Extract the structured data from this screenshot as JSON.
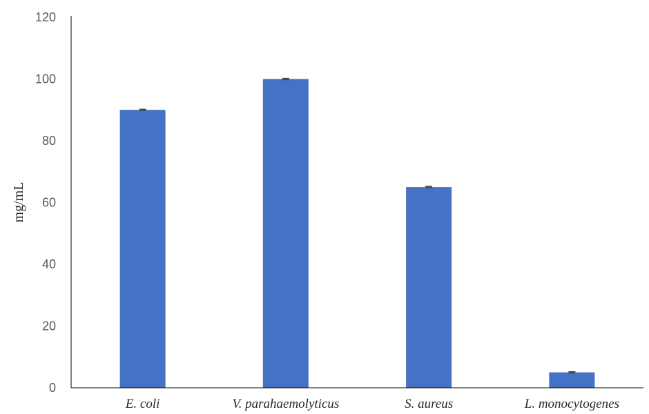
{
  "chart_data": {
    "type": "bar",
    "categories": [
      "E. coli",
      "V. parahaemolyticus",
      "S. aureus",
      "L. monocytogenes"
    ],
    "values": [
      90,
      100,
      65,
      5
    ],
    "error": [
      0.2,
      0.2,
      0.2,
      0.2
    ],
    "title": "",
    "xlabel": "",
    "ylabel": "mg/mL",
    "ylim": [
      0,
      120
    ],
    "yticks": [
      "0",
      "20",
      "40",
      "60",
      "80",
      "100",
      "120"
    ],
    "grid": false,
    "legend": "none",
    "bar_color": "#4472C4",
    "error_bar_color": "#404040",
    "axis_color": "#000000"
  }
}
